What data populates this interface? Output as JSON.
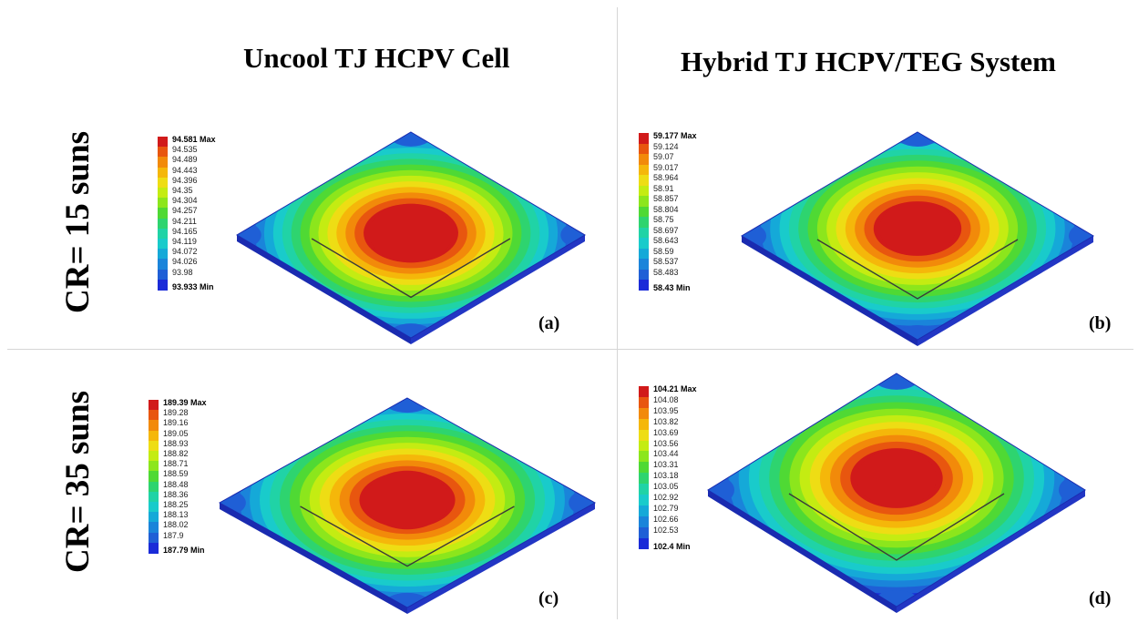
{
  "titles": {
    "left": "Uncool TJ HCPV Cell",
    "right": "Hybrid TJ HCPV/TEG System"
  },
  "rows": {
    "top": "CR= 15 suns",
    "bottom": "CR= 35 suns"
  },
  "colormap": [
    "#d11a1a",
    "#e8560f",
    "#f28a0a",
    "#f5b70a",
    "#eedd14",
    "#c4ec12",
    "#8ce61c",
    "#4fd934",
    "#2ed46f",
    "#20d3a6",
    "#19cbcb",
    "#15a9d8",
    "#1a84da",
    "#1f5fd6",
    "#1a2bd8"
  ],
  "panels": [
    {
      "id": "a",
      "tag": "(a)",
      "legend_values": [
        "94.581 Max",
        "94.535",
        "94.489",
        "94.443",
        "94.396",
        "94.35",
        "94.304",
        "94.257",
        "94.211",
        "94.165",
        "94.119",
        "94.072",
        "94.026",
        "93.98",
        "93.933 Min"
      ]
    },
    {
      "id": "b",
      "tag": "(b)",
      "legend_values": [
        "59.177 Max",
        "59.124",
        "59.07",
        "59.017",
        "58.964",
        "58.91",
        "58.857",
        "58.804",
        "58.75",
        "58.697",
        "58.643",
        "58.59",
        "58.537",
        "58.483",
        "58.43 Min"
      ]
    },
    {
      "id": "c",
      "tag": "(c)",
      "legend_values": [
        "189.39 Max",
        "189.28",
        "189.16",
        "189.05",
        "188.93",
        "188.82",
        "188.71",
        "188.59",
        "188.48",
        "188.36",
        "188.25",
        "188.13",
        "188.02",
        "187.9",
        "187.79 Min"
      ]
    },
    {
      "id": "d",
      "tag": "(d)",
      "legend_values": [
        "104.21 Max",
        "104.08",
        "103.95",
        "103.82",
        "103.69",
        "103.56",
        "103.44",
        "103.31",
        "103.18",
        "103.05",
        "102.92",
        "102.79",
        "102.66",
        "102.53",
        "102.4 Min"
      ]
    }
  ]
}
